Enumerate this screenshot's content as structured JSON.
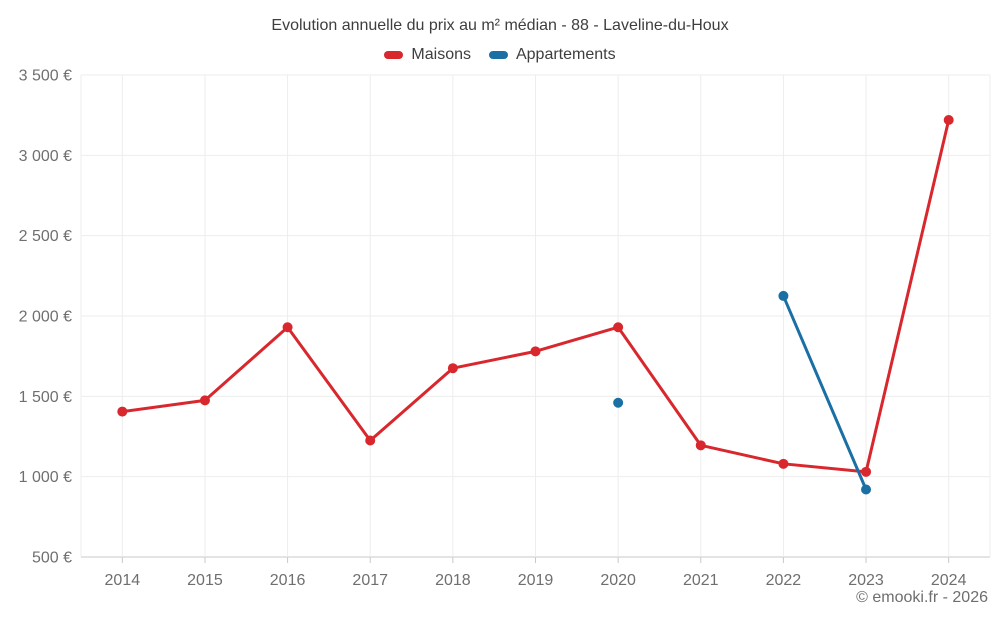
{
  "footer_credit": "© emooki.fr - 2026",
  "colors": {
    "background": "#ffffff",
    "grid": "#ededed",
    "axis": "#c9c9c9",
    "tick": "#c9c9c9",
    "axis_label": "#6f6f6f",
    "title_text": "#3e3e3e",
    "maisons_red": "#d8272d",
    "appartements_blue": "#1a6fa4"
  },
  "chart_data": {
    "type": "line",
    "title": "Evolution annuelle du prix au m² médian - 88 - Laveline-du-Houx",
    "categories": [
      "2014",
      "2015",
      "2016",
      "2017",
      "2018",
      "2019",
      "2020",
      "2021",
      "2022",
      "2023",
      "2024"
    ],
    "series": [
      {
        "name": "Maisons",
        "color": "#d8272d",
        "values": [
          1405,
          1475,
          1930,
          1225,
          1675,
          1780,
          1930,
          1195,
          1080,
          1030,
          3220
        ]
      },
      {
        "name": "Appartements",
        "color": "#1a6fa4",
        "values": [
          null,
          null,
          null,
          null,
          null,
          null,
          1460,
          null,
          2125,
          920,
          null
        ]
      }
    ],
    "unit": "€ / m²",
    "ylim": [
      500,
      3500
    ],
    "yticks": [
      {
        "value": 500,
        "label": "500 €"
      },
      {
        "value": 1000,
        "label": "1 000 €"
      },
      {
        "value": 1500,
        "label": "1 500 €"
      },
      {
        "value": 2000,
        "label": "2 000 €"
      },
      {
        "value": 2500,
        "label": "2 500 €"
      },
      {
        "value": 3000,
        "label": "3 000 €"
      },
      {
        "value": 3500,
        "label": "3 500 €"
      }
    ],
    "grid": true,
    "legend_position": "top",
    "gap_policy": "isolated-points-not-connected"
  }
}
